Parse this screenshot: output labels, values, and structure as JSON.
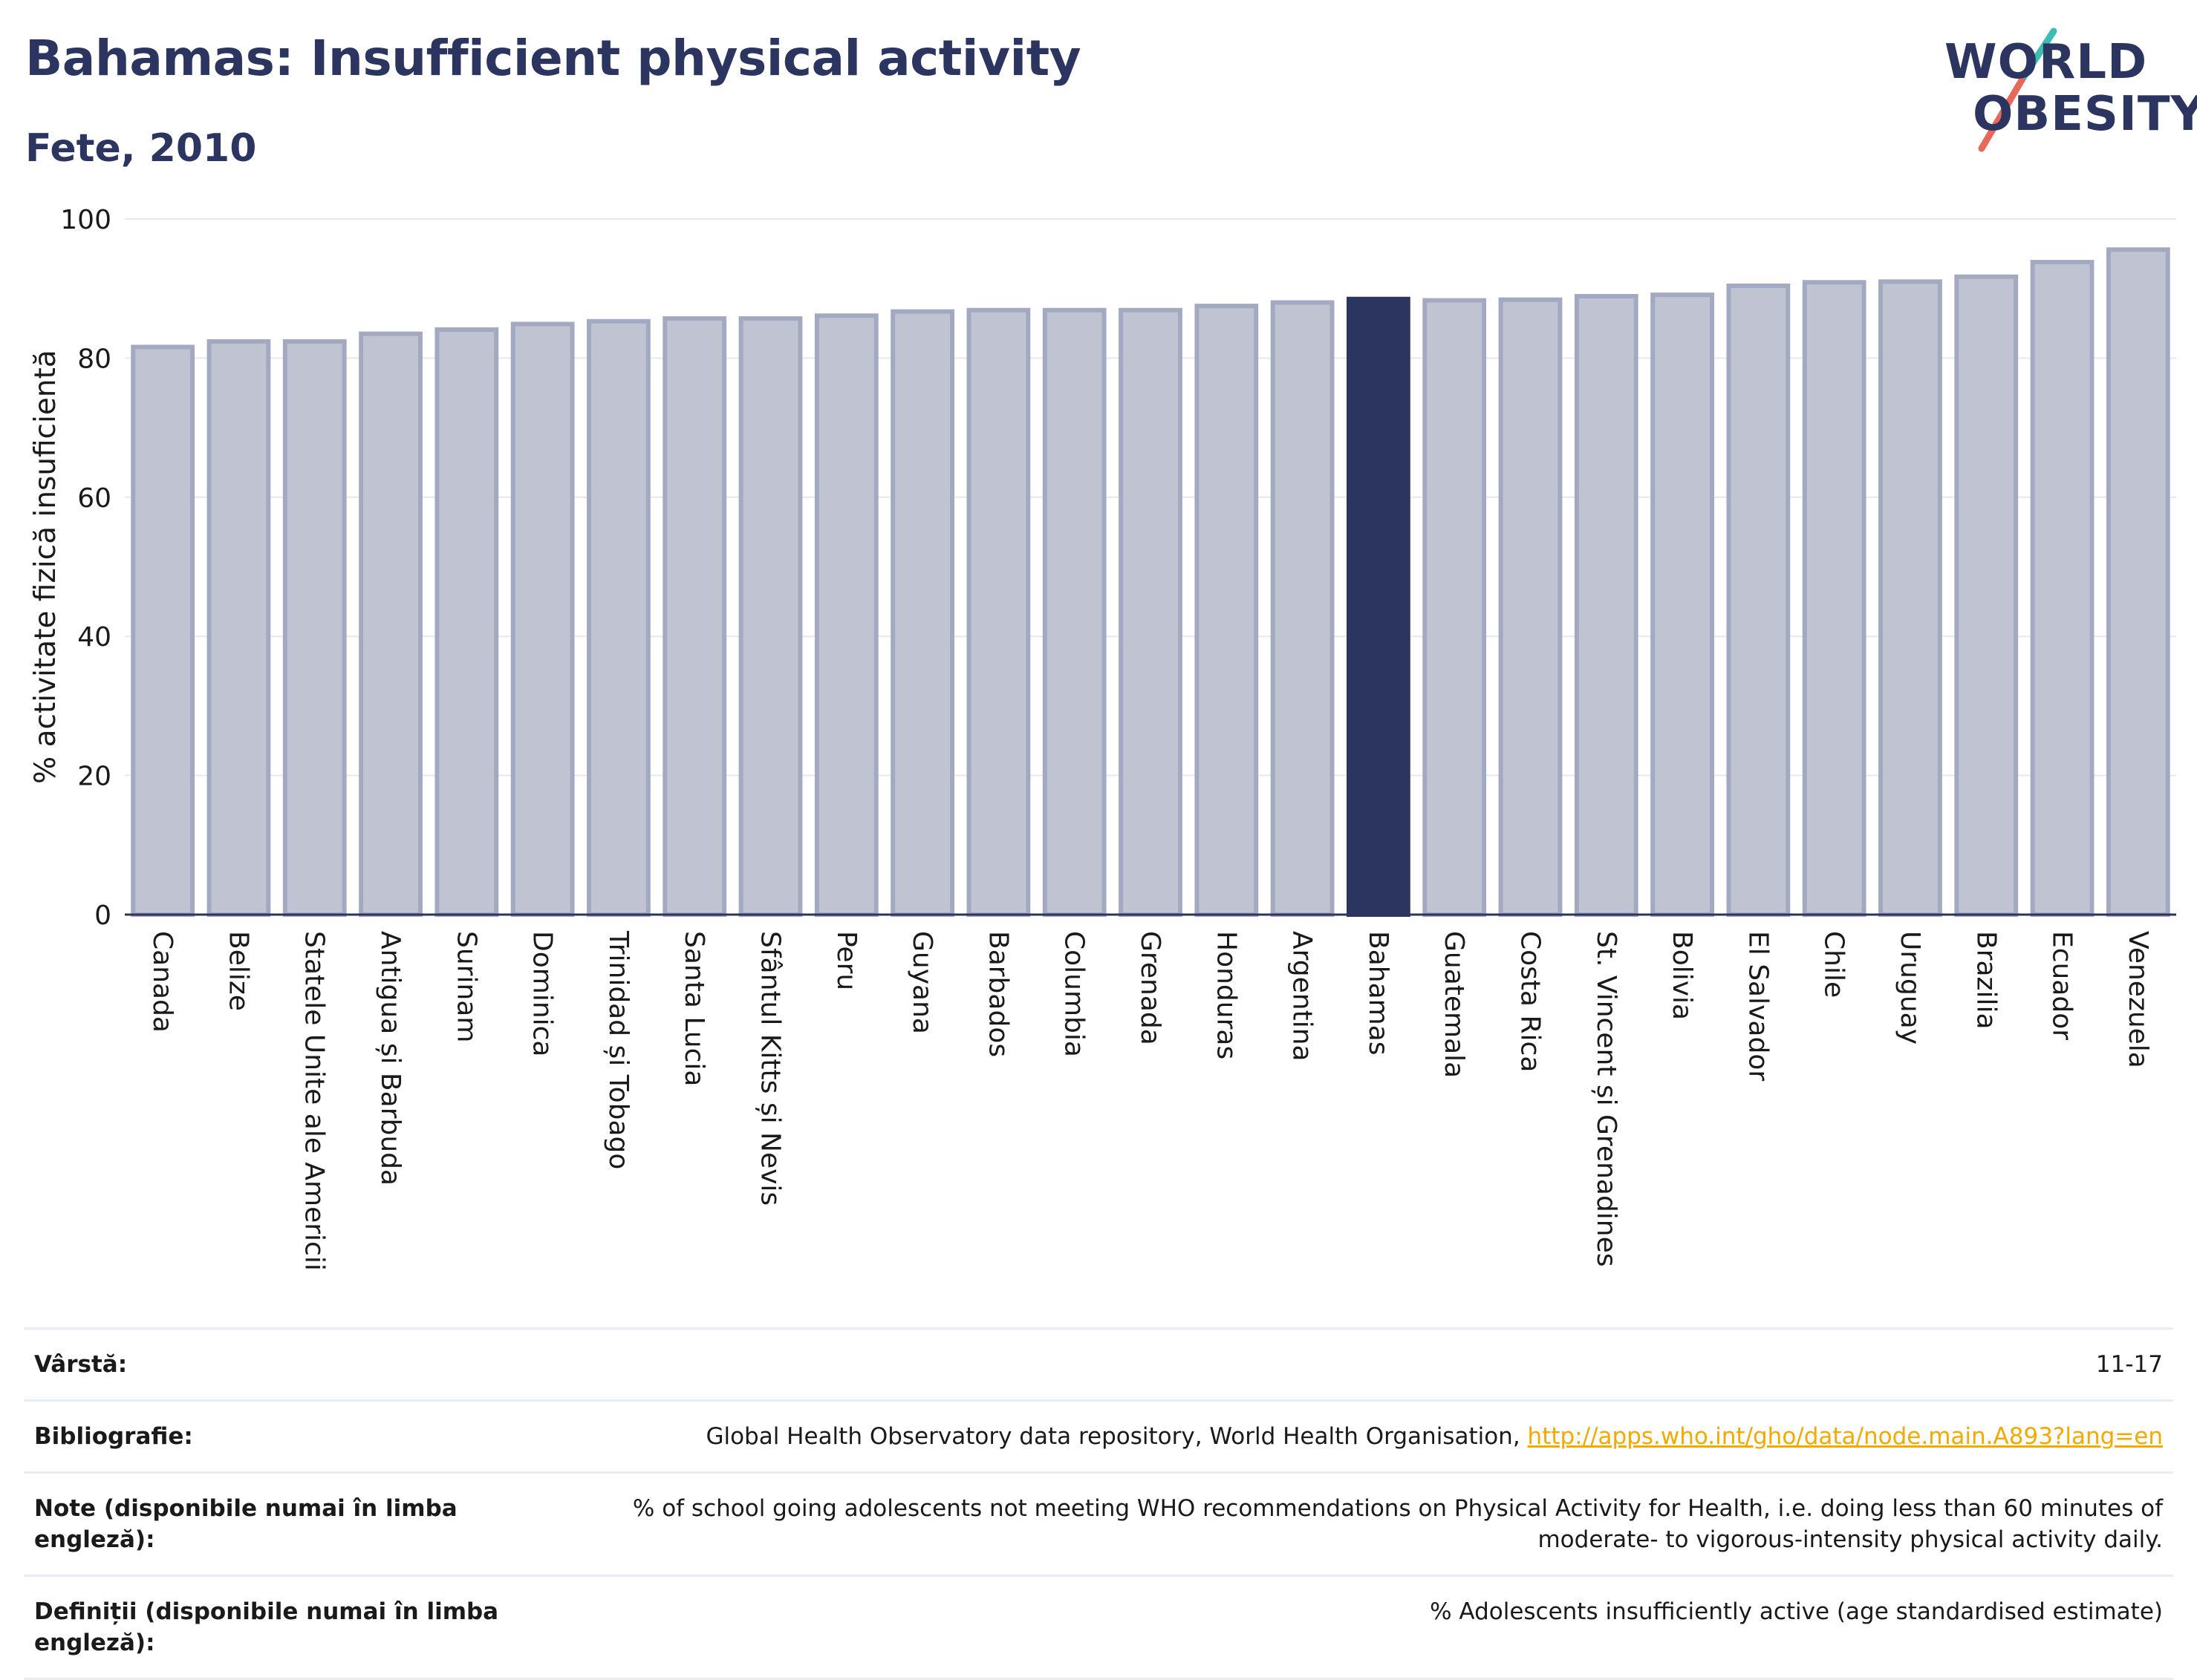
{
  "header": {
    "title": "Bahamas: Insufficient physical activity",
    "subtitle": "Fete, 2010"
  },
  "logo": {
    "line1": "WORLD",
    "line2": "OBESITY",
    "colors": {
      "text": "#2b3560",
      "slash_red": "#e8685a",
      "slash_teal": "#3dbdb2"
    }
  },
  "chart_data": {
    "type": "bar",
    "ylabel": "% activitate fizică insuficientă",
    "ylim": [
      0,
      100
    ],
    "yticks": [
      0,
      20,
      40,
      60,
      80,
      100
    ],
    "grid": true,
    "highlight": "Bahamas",
    "colors": {
      "bar": "#c0c4d2",
      "bar_edge": "#a3a9c0",
      "highlight": "#2b3560"
    },
    "categories": [
      "Canada",
      "Belize",
      "Statele Unite ale Americii",
      "Antigua și Barbuda",
      "Surinam",
      "Dominica",
      "Trinidad și Tobago",
      "Santa Lucia",
      "Sfântul Kitts și Nevis",
      "Peru",
      "Guyana",
      "Barbados",
      "Columbia",
      "Grenada",
      "Honduras",
      "Argentina",
      "Bahamas",
      "Guatemala",
      "Costa Rica",
      "St. Vincent și Grenadines",
      "Bolivia",
      "El Salvador",
      "Chile",
      "Uruguay",
      "Brazilia",
      "Ecuador",
      "Venezuela"
    ],
    "values": [
      81.6,
      82.4,
      82.4,
      83.5,
      84.1,
      84.9,
      85.3,
      85.7,
      85.7,
      86.1,
      86.7,
      86.9,
      86.9,
      86.9,
      87.5,
      88.0,
      88.5,
      88.3,
      88.4,
      88.9,
      89.1,
      90.4,
      90.9,
      91.0,
      91.7,
      93.8,
      95.6
    ]
  },
  "info": {
    "age_label": "Vârstă:",
    "age_value": "11-17",
    "bib_label": "Bibliografie:",
    "bib_text": "Global Health Observatory data repository, World Health Organisation, ",
    "bib_link": "http://apps.who.int/gho/data/node.main.A893?lang=en",
    "notes_label": "Note (disponibile numai în limba engleză):",
    "notes_value": "% of school going adolescents not meeting WHO recommendations on Physical Activity for Health, i.e. doing less than 60 minutes of moderate- to vigorous-intensity physical activity daily.",
    "defs_label": "Definiții (disponibile numai în limba engleză):",
    "defs_value": "% Adolescents insufficiently active (age standardised estimate)"
  }
}
